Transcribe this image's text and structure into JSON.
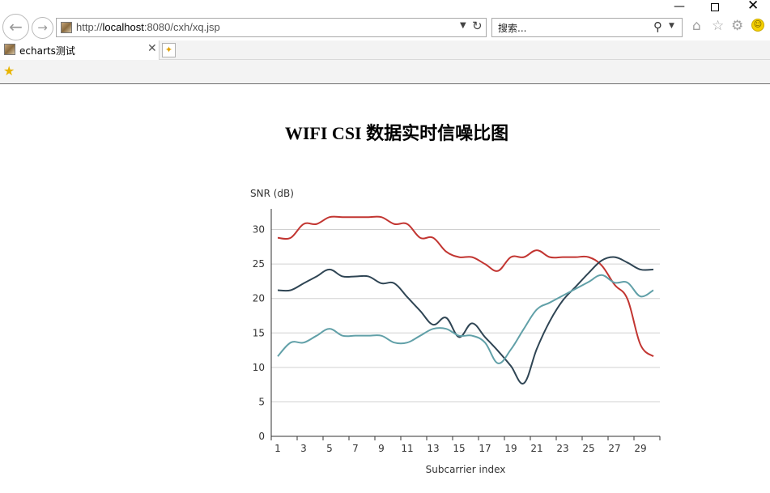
{
  "browser": {
    "url_path": "http://",
    "url_host": "localhost",
    "url_rest": ":8080/cxh/xq.jsp",
    "search_placeholder": "搜索...",
    "tab_title": "echarts测试"
  },
  "chart_data": {
    "type": "line",
    "title": "WIFI CSI 数据实时信噪比图",
    "ylabel": "SNR (dB)",
    "xlabel": "Subcarrier index",
    "ylim": [
      0,
      33
    ],
    "yticks": [
      0,
      5,
      10,
      15,
      20,
      25,
      30
    ],
    "x": [
      1,
      2,
      3,
      4,
      5,
      6,
      7,
      8,
      9,
      10,
      11,
      12,
      13,
      14,
      15,
      16,
      17,
      18,
      19,
      20,
      21,
      22,
      23,
      24,
      25,
      26,
      27,
      28,
      29,
      30
    ],
    "xtick_labels": [
      "1",
      "3",
      "5",
      "7",
      "9",
      "11",
      "13",
      "15",
      "17",
      "19",
      "21",
      "23",
      "25",
      "27",
      "29"
    ],
    "grid": true,
    "series": [
      {
        "color": "#c23531",
        "values": [
          28.8,
          28.8,
          30.8,
          30.8,
          31.8,
          31.8,
          31.8,
          31.8,
          31.8,
          30.8,
          30.8,
          28.8,
          28.8,
          26.8,
          26.0,
          26.0,
          25.0,
          24.0,
          26.0,
          26.0,
          27.0,
          26.0,
          26.0,
          26.0,
          26.0,
          24.8,
          22.0,
          19.9,
          13.3,
          11.6
        ]
      },
      {
        "color": "#2f4554",
        "values": [
          21.2,
          21.2,
          22.2,
          23.2,
          24.2,
          23.2,
          23.2,
          23.2,
          22.2,
          22.2,
          20.2,
          18.2,
          16.2,
          17.2,
          14.4,
          16.4,
          14.4,
          12.4,
          10.2,
          7.7,
          12.7,
          16.7,
          19.7,
          21.7,
          23.7,
          25.5,
          26.0,
          25.2,
          24.2,
          24.2
        ]
      },
      {
        "color": "#61a0a8",
        "values": [
          11.6,
          13.6,
          13.6,
          14.6,
          15.6,
          14.6,
          14.6,
          14.6,
          14.6,
          13.6,
          13.6,
          14.6,
          15.6,
          15.6,
          14.6,
          14.6,
          13.6,
          10.6,
          12.6,
          15.6,
          18.4,
          19.4,
          20.4,
          21.4,
          22.4,
          23.4,
          22.3,
          22.3,
          20.3,
          21.2
        ]
      }
    ]
  }
}
